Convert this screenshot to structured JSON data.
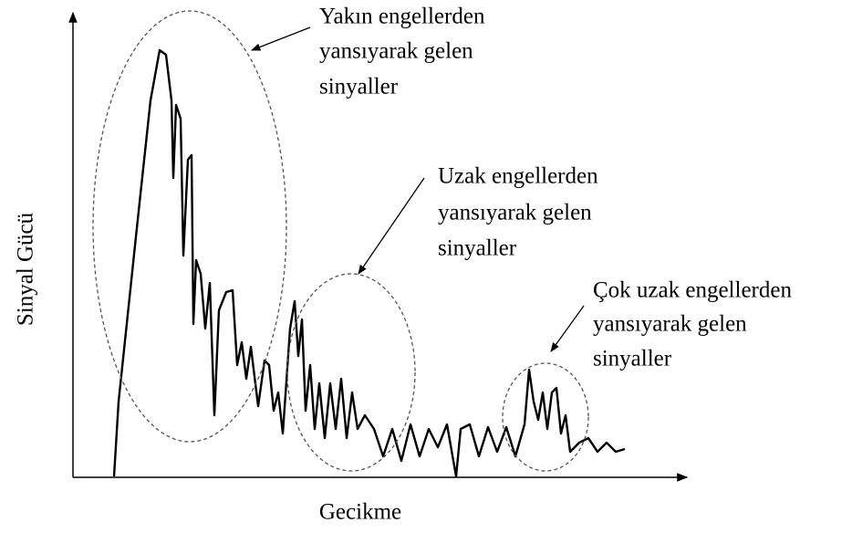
{
  "axes": {
    "y_label": "Sinyal Gücü",
    "x_label": "Gecikme"
  },
  "annotations": [
    {
      "lines": [
        "Yakın engellerden",
        "yansıyarak gelen",
        "sinyaller"
      ]
    },
    {
      "lines": [
        "Uzak engellerden",
        "yansıyarak gelen",
        "sinyaller"
      ]
    },
    {
      "lines": [
        "Çok uzak engellerden",
        "yansıyarak gelen",
        "sinyaller"
      ]
    }
  ]
}
